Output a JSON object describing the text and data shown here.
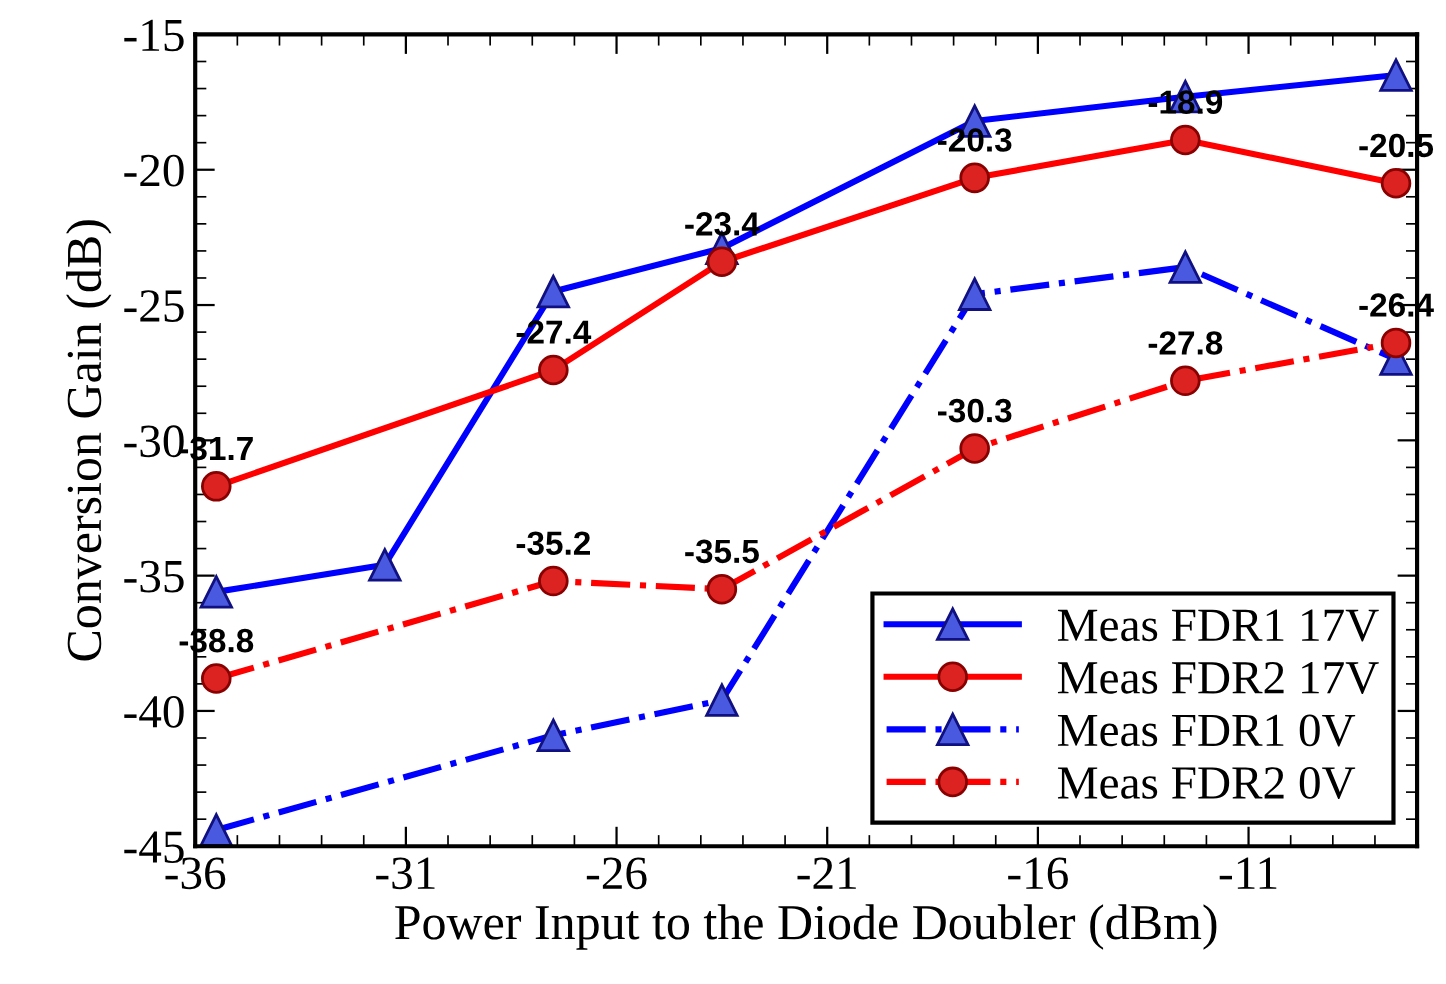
{
  "chart_data": {
    "type": "line",
    "xlabel": "Power Input to the Diode Doubler (dBm)",
    "ylabel": "Conversion Gain (dB)",
    "xlim": [
      -36,
      -7
    ],
    "xticks": [
      -36,
      -31,
      -26,
      -21,
      -16,
      -11
    ],
    "ylim": [
      -45,
      -15
    ],
    "yticks": [
      -45,
      -40,
      -35,
      -30,
      -25,
      -20,
      -15
    ],
    "grid": false,
    "legend": "bottom right",
    "series": [
      {
        "name": "Meas FDR1 17V",
        "color": "#0000ff",
        "marker": "triangle",
        "line_style": "solid",
        "x": [
          -35.5,
          -31.5,
          -27.5,
          -23.5,
          -17.5,
          -12.5,
          -7.5
        ],
        "values": [
          -35.6,
          -34.6,
          -24.5,
          -22.9,
          -18.2,
          -17.3,
          -16.5
        ]
      },
      {
        "name": "Meas FDR2 17V",
        "color": "#ff0000",
        "marker": "circle",
        "line_style": "solid",
        "x": [
          -35.5,
          -27.5,
          -23.5,
          -17.5,
          -12.5,
          -7.5
        ],
        "values": [
          -31.7,
          -27.4,
          -23.4,
          -20.3,
          -18.9,
          -20.5
        ],
        "value_labels": [
          "-31.7",
          "-27.4",
          "-23.4",
          "-20.3",
          "-18.9",
          "-20.5"
        ]
      },
      {
        "name": "Meas FDR1 0V",
        "color": "#0000ff",
        "marker": "triangle",
        "line_style": "dashdot",
        "x": [
          -35.5,
          -27.5,
          -23.5,
          -17.5,
          -12.5,
          -7.5
        ],
        "values": [
          -44.4,
          -40.9,
          -39.6,
          -24.6,
          -23.6,
          -27.0
        ]
      },
      {
        "name": "Meas FDR2 0V",
        "color": "#ff0000",
        "marker": "circle",
        "line_style": "dashdot",
        "x": [
          -35.5,
          -27.5,
          -23.5,
          -17.5,
          -12.5,
          -7.5
        ],
        "values": [
          -38.8,
          -35.2,
          -35.5,
          -30.3,
          -27.8,
          -26.4
        ],
        "value_labels": [
          "-38.8",
          "-35.2",
          "-35.5",
          "-30.3",
          "-27.8",
          "-26.4"
        ]
      }
    ]
  }
}
